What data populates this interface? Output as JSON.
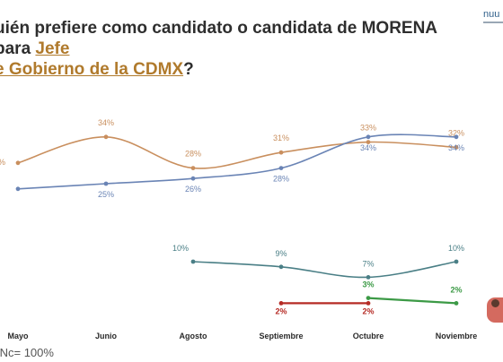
{
  "header": {
    "title_main": "uién prefiere como candidato o candidata de MORENA para ",
    "title_hl1": "Jefe",
    "title_hl2": "e Gobierno de la CDMX",
    "title_end": "?"
  },
  "logo": {
    "text": "nuu"
  },
  "footnote": {
    "text": "/Nc= 100%"
  },
  "chart_data": {
    "type": "line",
    "categories": [
      "Mayo",
      "Junio",
      "Agosto",
      "Septiembre",
      "Octubre",
      "Noviembre"
    ],
    "ylim": [
      0,
      40
    ],
    "series": [
      {
        "color": "#c98f5e",
        "values": [
          29,
          34,
          28,
          31,
          33,
          32
        ],
        "labels": [
          "",
          "34%",
          "28%",
          "31%",
          "33%",
          "32%"
        ]
      },
      {
        "color": "#6a84b5",
        "values": [
          24,
          25,
          26,
          28,
          34,
          34
        ],
        "labels": [
          "",
          "25%",
          "26%",
          "28%",
          "34%",
          "34%"
        ]
      },
      {
        "color": "#4a7f86",
        "values": [
          null,
          null,
          10,
          9,
          7,
          10
        ],
        "labels": [
          "",
          "",
          "10%",
          "9%",
          "7%",
          "10%"
        ]
      },
      {
        "color": "#3c9a46",
        "values": [
          null,
          null,
          null,
          null,
          3,
          2
        ],
        "labels": [
          "",
          "",
          "",
          "",
          "3%",
          "2%"
        ]
      },
      {
        "color": "#b62b25",
        "values": [
          null,
          null,
          null,
          2,
          2,
          null
        ],
        "labels": [
          "",
          "",
          "",
          "2%",
          "2%",
          ""
        ]
      }
    ]
  }
}
